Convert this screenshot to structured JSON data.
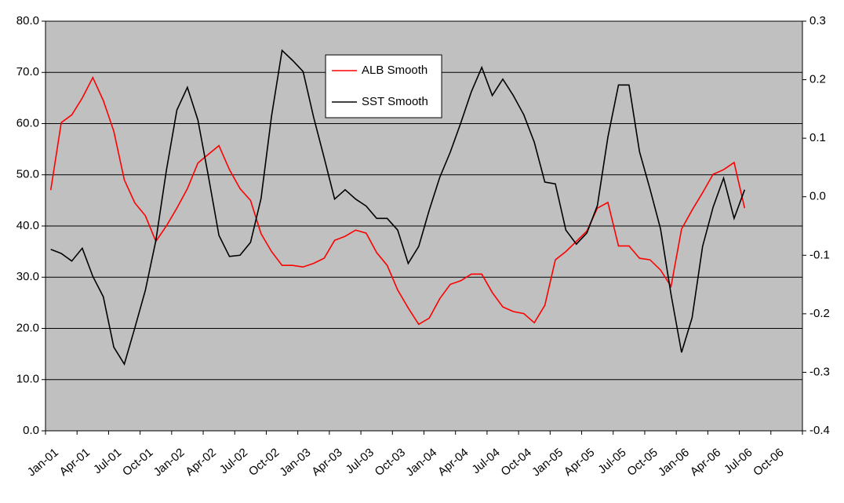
{
  "chart_data": {
    "type": "line",
    "categories": [
      "Jan-01",
      null,
      null,
      "Apr-01",
      null,
      null,
      "Jul-01",
      null,
      null,
      "Oct-01",
      null,
      null,
      "Jan-02",
      null,
      null,
      "Apr-02",
      null,
      null,
      "Jul-02",
      null,
      null,
      "Oct-02",
      null,
      null,
      "Jan-03",
      null,
      null,
      "Apr-03",
      null,
      null,
      "Jul-03",
      null,
      null,
      "Oct-03",
      null,
      null,
      "Jan-04",
      null,
      null,
      "Apr-04",
      null,
      null,
      "Jul-04",
      null,
      null,
      "Oct-04",
      null,
      null,
      "Jan-05",
      null,
      null,
      "Apr-05",
      null,
      null,
      "Jul-05",
      null,
      null,
      "Oct-05",
      null,
      null,
      "Jan-06",
      null,
      null,
      "Apr-06",
      null,
      null,
      "Jul-06",
      null,
      null,
      "Oct-06",
      null,
      null
    ],
    "series": [
      {
        "name": "ALB Smooth",
        "color": "#ff0000",
        "values": [
          47,
          60.2,
          61.7,
          65,
          69,
          64.5,
          58.5,
          49,
          44.5,
          42,
          37,
          40,
          43.5,
          47.3,
          52.3,
          54,
          55.7,
          51,
          47.3,
          45,
          38.5,
          35,
          32.3,
          32.3,
          32,
          32.7,
          33.7,
          37.2,
          38,
          39.2,
          38.6,
          34.8,
          32.3,
          27.5,
          24,
          20.8,
          22,
          25.8,
          28.6,
          29.3,
          30.6,
          30.6,
          27,
          24.2,
          23.3,
          22.9,
          21.1,
          24.5,
          33.4,
          35,
          37,
          39,
          43.5,
          44.6,
          36.1,
          36.1,
          33.7,
          33.4,
          31.4,
          28.2,
          39.4,
          43.1,
          46.5,
          50.1,
          51,
          52.4,
          43.5,
          null,
          null,
          null,
          null,
          null
        ]
      },
      {
        "name": "SST Smooth",
        "color": "#000000",
        "axis": "y2",
        "values": [
          -0.09,
          -0.097,
          -0.11,
          -0.088,
          -0.136,
          -0.171,
          -0.257,
          -0.286,
          -0.224,
          -0.16,
          -0.075,
          0.045,
          0.148,
          0.187,
          0.131,
          0.035,
          -0.066,
          -0.102,
          -0.1,
          -0.078,
          -0.003,
          0.138,
          0.25,
          0.233,
          0.214,
          0.136,
          0.067,
          -0.004,
          0.012,
          -0.004,
          -0.016,
          -0.037,
          -0.037,
          -0.057,
          -0.114,
          -0.085,
          -0.023,
          0.033,
          0.076,
          0.126,
          0.179,
          0.221,
          0.173,
          0.201,
          0.173,
          0.14,
          0.093,
          0.025,
          0.022,
          -0.057,
          -0.081,
          -0.062,
          -0.015,
          0.102,
          0.191,
          0.191,
          0.077,
          0.013,
          -0.055,
          -0.167,
          -0.266,
          -0.207,
          -0.085,
          -0.018,
          0.032,
          -0.037,
          0.012,
          null,
          null,
          null,
          null,
          null
        ]
      }
    ],
    "ylim": [
      0,
      80
    ],
    "yticks": [
      {
        "value": 0,
        "label": "0.0"
      },
      {
        "value": 10,
        "label": "10.0"
      },
      {
        "value": 20,
        "label": "20.0"
      },
      {
        "value": 30,
        "label": "30.0"
      },
      {
        "value": 40,
        "label": "40.0"
      },
      {
        "value": 50,
        "label": "50.0"
      },
      {
        "value": 60,
        "label": "60.0"
      },
      {
        "value": 70,
        "label": "70.0"
      },
      {
        "value": 80,
        "label": "80.0"
      }
    ],
    "y2lim": [
      -0.4,
      0.3
    ],
    "y2ticks": [
      -0.4,
      -0.3,
      -0.2,
      -0.1,
      {
        "value": 0,
        "label": "0.0"
      },
      0.1,
      0.2,
      0.3
    ],
    "grid": true,
    "legend": "top",
    "background": "#c0c0c0"
  }
}
